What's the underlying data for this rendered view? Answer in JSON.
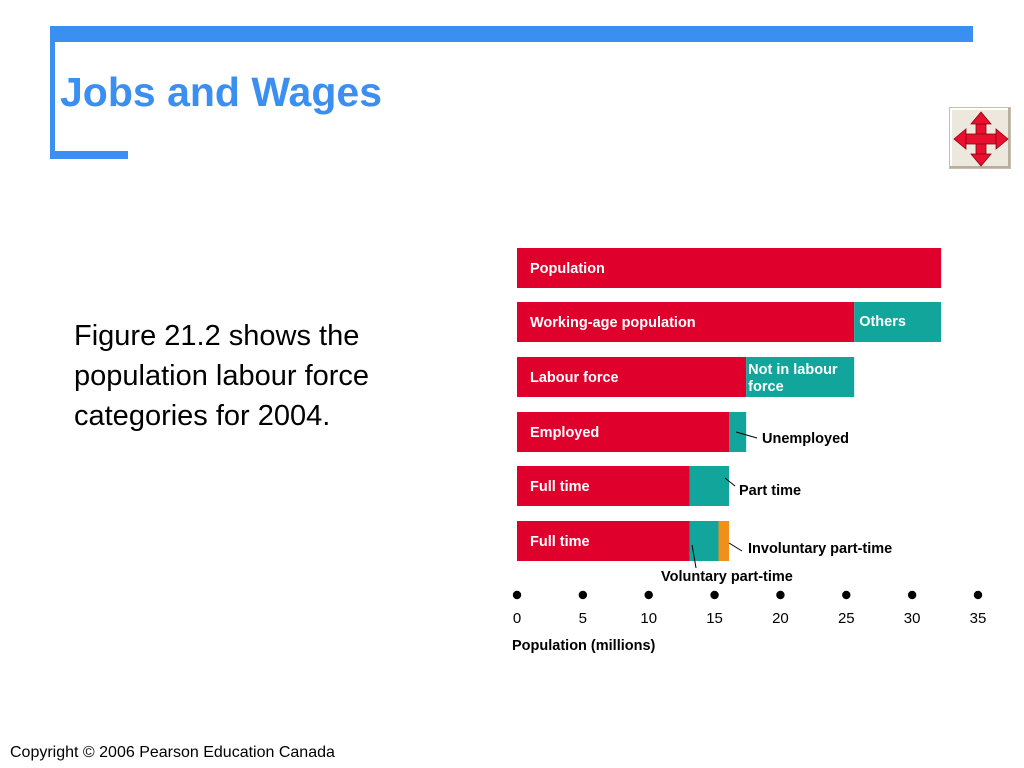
{
  "slide": {
    "title": "Jobs and Wages",
    "body": "Figure 21.2 shows the population labour force categories for 2004.",
    "copyright": "Copyright © 2006 Pearson Education Canada"
  },
  "nav_button": {
    "icon": "four-way-arrows-icon",
    "color": "#e8102e"
  },
  "colors": {
    "red": "#e0002c",
    "teal": "#11a59b",
    "orange": "#f0901a",
    "accent": "#3b8ff0"
  },
  "chart_data": {
    "type": "bar",
    "orientation": "horizontal",
    "stacked": true,
    "xlabel": "Population (millions)",
    "xlim": [
      0,
      35
    ],
    "x_ticks": [
      0,
      5,
      10,
      15,
      20,
      25,
      30,
      35
    ],
    "rows": [
      {
        "segments": [
          {
            "label": "Population",
            "value": 32.2,
            "color": "red"
          }
        ]
      },
      {
        "segments": [
          {
            "label": "Working-age population",
            "value": 25.6,
            "color": "red"
          },
          {
            "label": "Others",
            "value": 6.6,
            "color": "teal"
          }
        ]
      },
      {
        "segments": [
          {
            "label": "Labour force",
            "value": 17.4,
            "color": "red"
          },
          {
            "label": "Not in labour force",
            "value": 8.2,
            "color": "teal"
          }
        ]
      },
      {
        "segments": [
          {
            "label": "Employed",
            "value": 16.1,
            "color": "red"
          },
          {
            "label": "Unemployed",
            "value": 1.3,
            "color": "teal"
          }
        ]
      },
      {
        "segments": [
          {
            "label": "Full time",
            "value": 13.1,
            "color": "red"
          },
          {
            "label": "Part time",
            "value": 3.0,
            "color": "teal"
          }
        ]
      },
      {
        "segments": [
          {
            "label": "Full time",
            "value": 13.1,
            "color": "red"
          },
          {
            "label": "Voluntary part-time",
            "value": 2.2,
            "color": "teal"
          },
          {
            "label": "Involuntary part-time",
            "value": 0.8,
            "color": "orange"
          }
        ]
      }
    ]
  }
}
